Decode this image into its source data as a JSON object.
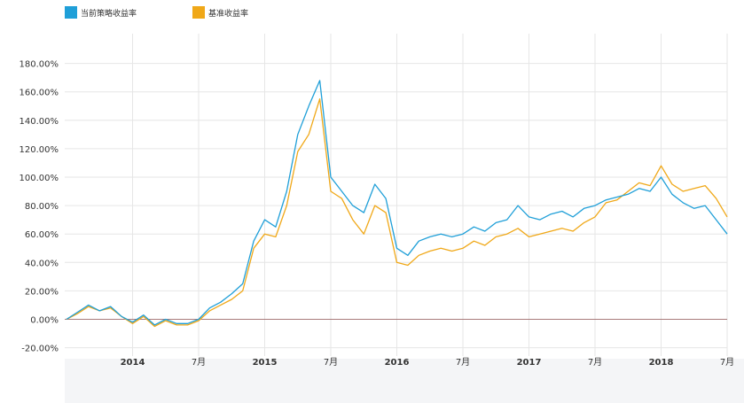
{
  "chart_data": {
    "type": "line",
    "title": "",
    "xlabel": "",
    "ylabel": "",
    "ylim": [
      -20,
      190
    ],
    "grid": true,
    "legend_position": "top-left",
    "y_ticks": [
      -20,
      0,
      20,
      40,
      60,
      80,
      100,
      120,
      140,
      160,
      180
    ],
    "y_tick_labels": [
      "-20.00%",
      "0.00%",
      "20.00%",
      "40.00%",
      "60.00%",
      "80.00%",
      "100.00%",
      "120.00%",
      "140.00%",
      "160.00%",
      "180.00%"
    ],
    "x_ticks": [
      {
        "label": "2014",
        "x": "2014-01",
        "major": true
      },
      {
        "label": "7月",
        "x": "2014-07",
        "major": false
      },
      {
        "label": "2015",
        "x": "2015-01",
        "major": true
      },
      {
        "label": "7月",
        "x": "2015-07",
        "major": false
      },
      {
        "label": "2016",
        "x": "2016-01",
        "major": true
      },
      {
        "label": "7月",
        "x": "2016-07",
        "major": false
      },
      {
        "label": "2017",
        "x": "2017-01",
        "major": true
      },
      {
        "label": "7月",
        "x": "2017-07",
        "major": false
      },
      {
        "label": "2018",
        "x": "2018-01",
        "major": true
      },
      {
        "label": "7月",
        "x": "2018-07",
        "major": false
      }
    ],
    "x": [
      "2013-07",
      "2013-08",
      "2013-09",
      "2013-10",
      "2013-11",
      "2013-12",
      "2014-01",
      "2014-02",
      "2014-03",
      "2014-04",
      "2014-05",
      "2014-06",
      "2014-07",
      "2014-08",
      "2014-09",
      "2014-10",
      "2014-11",
      "2014-12",
      "2015-01",
      "2015-02",
      "2015-03",
      "2015-04",
      "2015-05",
      "2015-06",
      "2015-07",
      "2015-08",
      "2015-09",
      "2015-10",
      "2015-11",
      "2015-12",
      "2016-01",
      "2016-02",
      "2016-03",
      "2016-04",
      "2016-05",
      "2016-06",
      "2016-07",
      "2016-08",
      "2016-09",
      "2016-10",
      "2016-11",
      "2016-12",
      "2017-01",
      "2017-02",
      "2017-03",
      "2017-04",
      "2017-05",
      "2017-06",
      "2017-07",
      "2017-08",
      "2017-09",
      "2017-10",
      "2017-11",
      "2017-12",
      "2018-01",
      "2018-02",
      "2018-03",
      "2018-04",
      "2018-05",
      "2018-06",
      "2018-07"
    ],
    "series": [
      {
        "name": "当前策略收益率",
        "color": "#1f9fd8",
        "values": [
          0,
          5,
          10,
          6,
          9,
          2,
          -2,
          3,
          -4,
          0,
          -3,
          -3,
          0,
          8,
          12,
          18,
          25,
          55,
          70,
          65,
          90,
          130,
          150,
          168,
          100,
          90,
          80,
          75,
          95,
          85,
          50,
          45,
          55,
          58,
          60,
          58,
          60,
          65,
          62,
          68,
          70,
          80,
          72,
          70,
          74,
          76,
          72,
          78,
          80,
          84,
          86,
          88,
          92,
          90,
          100,
          88,
          82,
          78,
          80,
          70,
          60
        ]
      },
      {
        "name": "基准收益率",
        "color": "#f0a818",
        "values": [
          0,
          4,
          9,
          6,
          8,
          2,
          -3,
          2,
          -5,
          -1,
          -4,
          -4,
          -1,
          6,
          10,
          14,
          20,
          50,
          60,
          58,
          80,
          118,
          130,
          155,
          90,
          85,
          70,
          60,
          80,
          75,
          40,
          38,
          45,
          48,
          50,
          48,
          50,
          55,
          52,
          58,
          60,
          64,
          58,
          60,
          62,
          64,
          62,
          68,
          72,
          82,
          84,
          90,
          96,
          94,
          108,
          95,
          90,
          92,
          94,
          85,
          72
        ]
      }
    ]
  }
}
